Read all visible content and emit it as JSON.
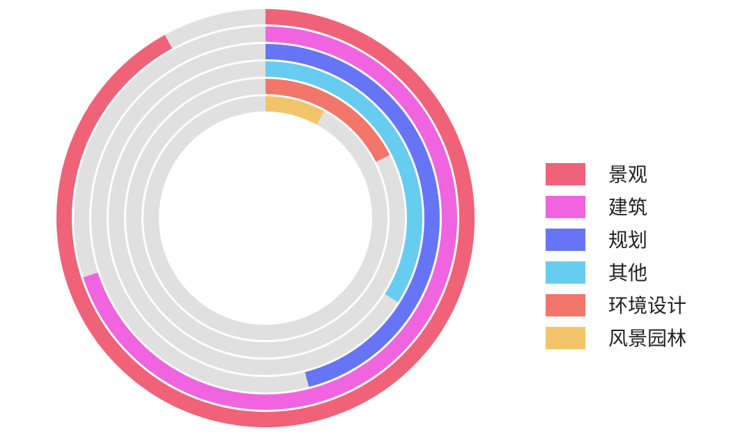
{
  "chart_data": {
    "type": "radial-bar",
    "categories": [
      "景观",
      "建筑",
      "规划",
      "其他",
      "环境设计",
      "风景园林"
    ],
    "values": [
      92,
      70,
      46,
      34,
      17.5,
      8
    ],
    "colors": [
      "#f06277",
      "#f064e0",
      "#6675f5",
      "#66ccf0",
      "#f2776a",
      "#f2c46a"
    ],
    "rlim": [
      0,
      100
    ],
    "track_color": "#e0e0e0",
    "legend": "right"
  }
}
